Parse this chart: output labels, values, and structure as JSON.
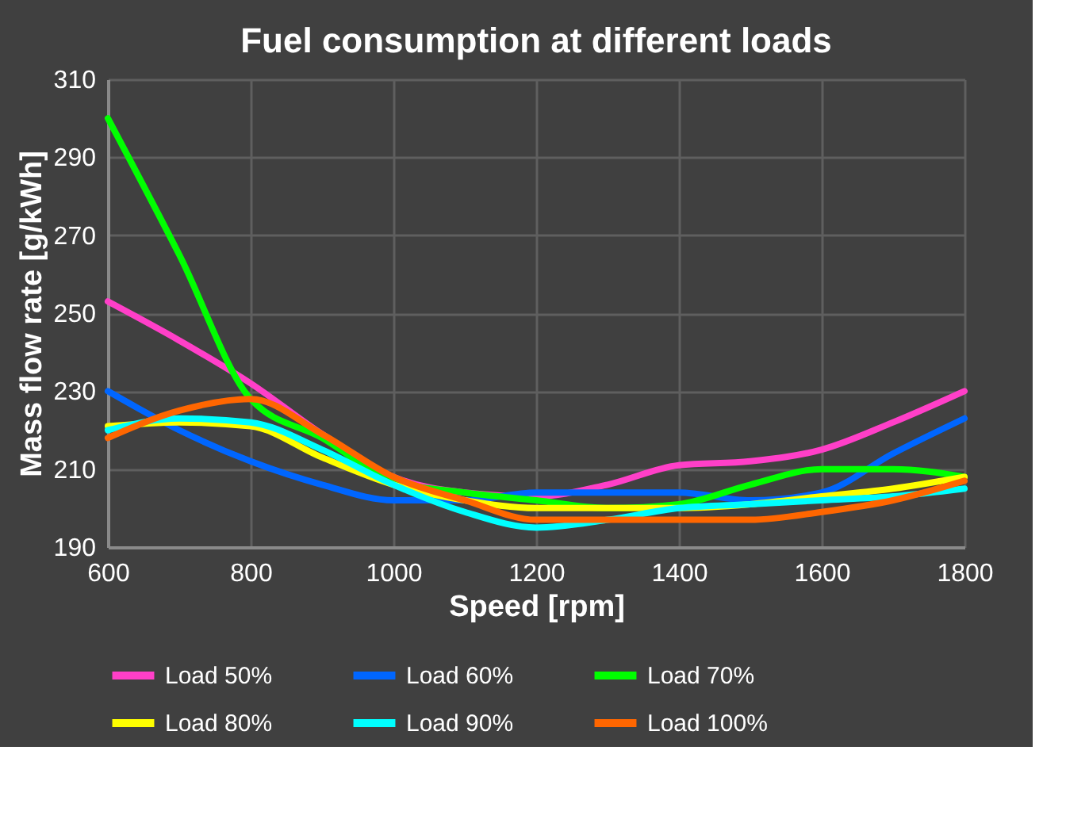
{
  "chart_data": {
    "type": "line",
    "title": "Fuel consumption at different loads",
    "xlabel": "Speed [rpm]",
    "ylabel": "Mass flow rate [g/kWh]",
    "xlim": [
      600,
      1800
    ],
    "xticks": [
      600,
      800,
      1000,
      1200,
      1400,
      1600,
      1800
    ],
    "ylim": [
      190,
      310
    ],
    "yticks": [
      190,
      210,
      230,
      250,
      270,
      290,
      310
    ],
    "grid": true,
    "legend": "bottom",
    "marker": "none",
    "line_style": "solid",
    "x": [
      600,
      700,
      800,
      900,
      1000,
      1100,
      1200,
      1300,
      1400,
      1500,
      1600,
      1700,
      1800
    ],
    "series": [
      {
        "name": "Load 50%",
        "color": "#ff3fc8",
        "values": [
          253,
          243,
          232,
          219,
          208,
          204,
          203,
          206,
          211,
          212,
          215,
          222,
          230
        ]
      },
      {
        "name": "Load 60%",
        "color": "#0066ff",
        "values": [
          230,
          220,
          212,
          206,
          202,
          202,
          204,
          204,
          204,
          202,
          204,
          214,
          223
        ]
      },
      {
        "name": "Load 70%",
        "color": "#00ff00",
        "values": [
          300,
          265,
          228,
          218,
          207,
          204,
          202,
          200,
          201,
          206,
          210,
          210,
          208
        ]
      },
      {
        "name": "Load 80%",
        "color": "#ffff00",
        "values": [
          221,
          222,
          221,
          213,
          206,
          202,
          200,
          200,
          200,
          201,
          203,
          205,
          208
        ]
      },
      {
        "name": "Load 90%",
        "color": "#00ffff",
        "values": [
          220,
          223,
          222,
          215,
          206,
          199,
          195,
          197,
          200,
          201,
          202,
          203,
          205
        ]
      },
      {
        "name": "Load 100%",
        "color": "#ff6600",
        "values": [
          218,
          225,
          228,
          219,
          208,
          202,
          197,
          197,
          197,
          197,
          199,
          202,
          207
        ]
      }
    ]
  }
}
